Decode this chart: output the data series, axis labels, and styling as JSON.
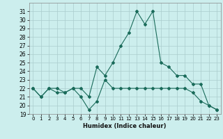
{
  "title": "",
  "xlabel": "Humidex (Indice chaleur)",
  "background_color": "#cceeed",
  "grid_color": "#aacccc",
  "line_color": "#1a6b5a",
  "xlim": [
    -0.5,
    23.5
  ],
  "ylim": [
    19,
    32
  ],
  "yticks": [
    19,
    20,
    21,
    22,
    23,
    24,
    25,
    26,
    27,
    28,
    29,
    30,
    31
  ],
  "xticks": [
    0,
    1,
    2,
    3,
    4,
    5,
    6,
    7,
    8,
    9,
    10,
    11,
    12,
    13,
    14,
    15,
    16,
    17,
    18,
    19,
    20,
    21,
    22,
    23
  ],
  "series1_x": [
    0,
    1,
    2,
    3,
    4,
    5,
    6,
    7,
    8,
    9,
    10,
    11,
    12,
    13,
    14,
    15,
    16,
    17,
    18,
    19,
    20,
    21,
    22,
    23
  ],
  "series1_y": [
    22.0,
    21.0,
    22.0,
    21.5,
    21.5,
    22.0,
    21.0,
    19.5,
    20.5,
    23.0,
    22.0,
    22.0,
    22.0,
    22.0,
    22.0,
    22.0,
    22.0,
    22.0,
    22.0,
    22.0,
    21.5,
    20.5,
    20.0,
    19.5
  ],
  "series2_x": [
    0,
    1,
    2,
    3,
    4,
    5,
    6,
    7,
    8,
    9,
    10,
    11,
    12,
    13,
    14,
    15,
    16,
    17,
    18,
    19,
    20,
    21,
    22,
    23
  ],
  "series2_y": [
    22.0,
    21.0,
    22.0,
    22.0,
    21.5,
    22.0,
    22.0,
    21.0,
    24.5,
    23.5,
    25.0,
    27.0,
    28.5,
    31.0,
    29.5,
    31.0,
    25.0,
    24.5,
    23.5,
    23.5,
    22.5,
    22.5,
    20.0,
    19.5
  ]
}
